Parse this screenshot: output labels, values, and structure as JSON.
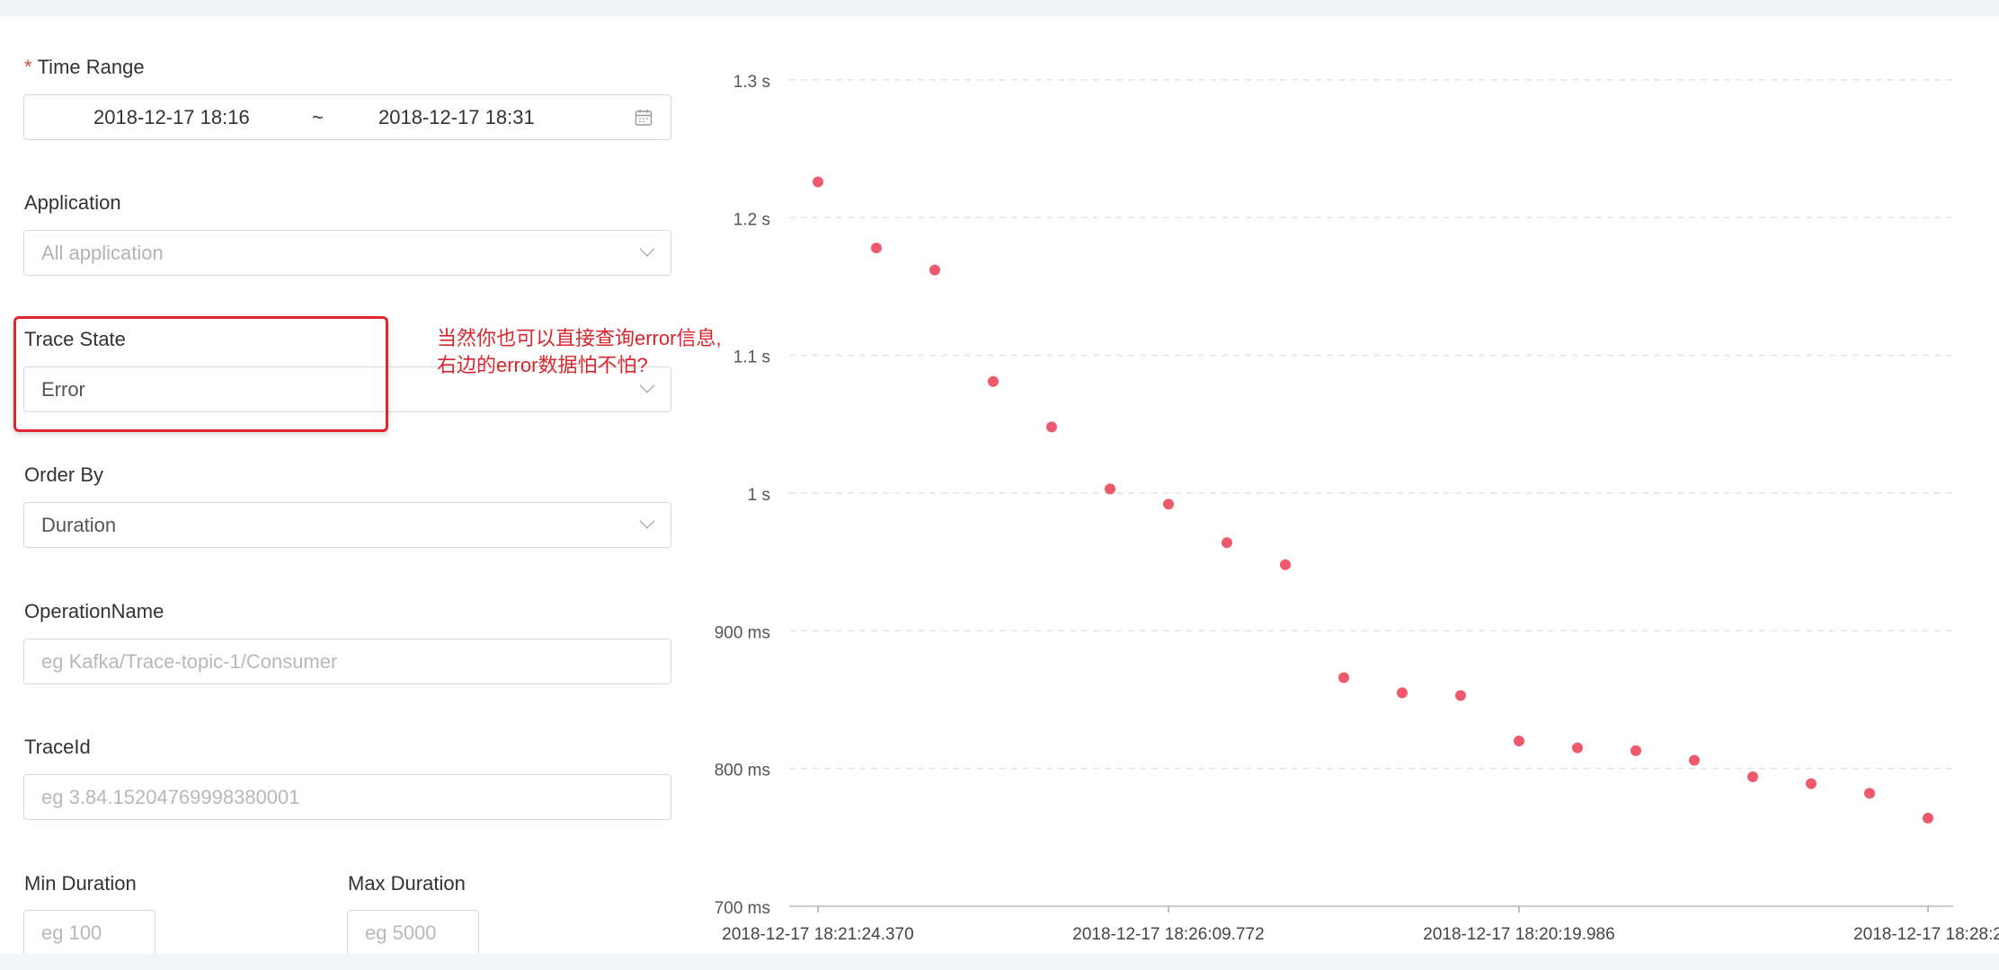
{
  "form": {
    "time_range": {
      "label": "Time Range",
      "required_mark": "*",
      "start": "2018-12-17 18:16",
      "separator": "~",
      "end": "2018-12-17 18:31",
      "icon": "calendar-icon"
    },
    "application": {
      "label": "Application",
      "placeholder": "All application",
      "icon": "chevron-down-icon"
    },
    "trace_state": {
      "label": "Trace State",
      "value": "Error",
      "icon": "chevron-down-icon"
    },
    "order_by": {
      "label": "Order By",
      "value": "Duration",
      "icon": "chevron-down-icon"
    },
    "operation_name": {
      "label": "OperationName",
      "placeholder": "eg Kafka/Trace-topic-1/Consumer"
    },
    "trace_id": {
      "label": "TraceId",
      "placeholder": "eg 3.84.15204769998380001"
    },
    "min_duration": {
      "label": "Min Duration",
      "placeholder": "eg 100"
    },
    "max_duration": {
      "label": "Max Duration",
      "placeholder": "eg 5000"
    }
  },
  "annotation": {
    "line1": "当然你也可以直接查询error信息,",
    "line2": "右边的error数据怕不怕?",
    "color": "#d8262c"
  },
  "chart_data": {
    "type": "scatter",
    "y_unit": "ms",
    "ylim": [
      700,
      1300
    ],
    "y_ticks": [
      {
        "value": 1300,
        "label": "1.3 s"
      },
      {
        "value": 1200,
        "label": "1.2 s"
      },
      {
        "value": 1100,
        "label": "1.1 s"
      },
      {
        "value": 1000,
        "label": "1 s"
      },
      {
        "value": 900,
        "label": "900 ms"
      },
      {
        "value": 800,
        "label": "800 ms"
      },
      {
        "value": 700,
        "label": "700 ms"
      }
    ],
    "grid": "horizontal dashed",
    "point_color": "#ee5a6c",
    "x_tick_labels": [
      {
        "index": 0,
        "label": "2018-12-17 18:21:24.370"
      },
      {
        "index": 6,
        "label": "2018-12-17 18:26:09.772"
      },
      {
        "index": 12,
        "label": "2018-12-17 18:20:19.986"
      },
      {
        "index": 19,
        "label": "2018-12-17 18:28:2"
      }
    ],
    "values": [
      1226,
      1178,
      1162,
      1081,
      1048,
      1003,
      992,
      964,
      948,
      866,
      855,
      853,
      820,
      815,
      813,
      806,
      794,
      789,
      782,
      764
    ]
  }
}
